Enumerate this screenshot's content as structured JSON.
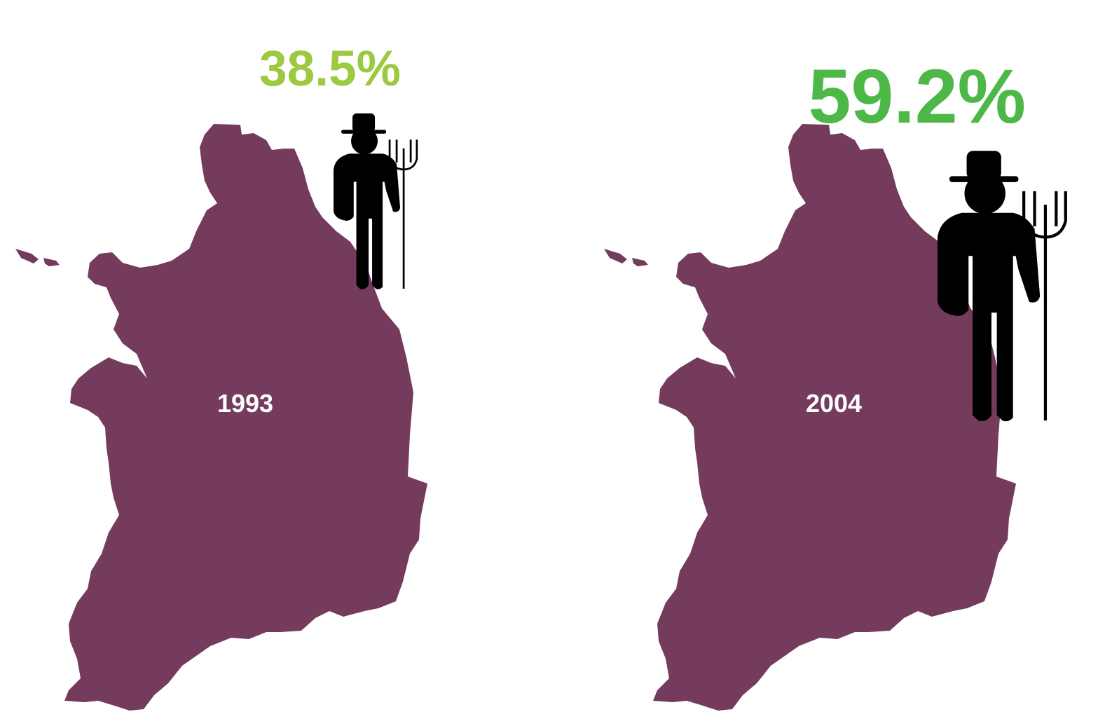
{
  "chart_data": {
    "type": "pictogram",
    "categories": [
      "1993",
      "2004"
    ],
    "values": [
      38.5,
      59.2
    ],
    "value_labels": [
      "38.5%",
      "59.2%"
    ],
    "colors": [
      "#9cc93f",
      "#4db848"
    ],
    "map_color": "#743b5d"
  }
}
